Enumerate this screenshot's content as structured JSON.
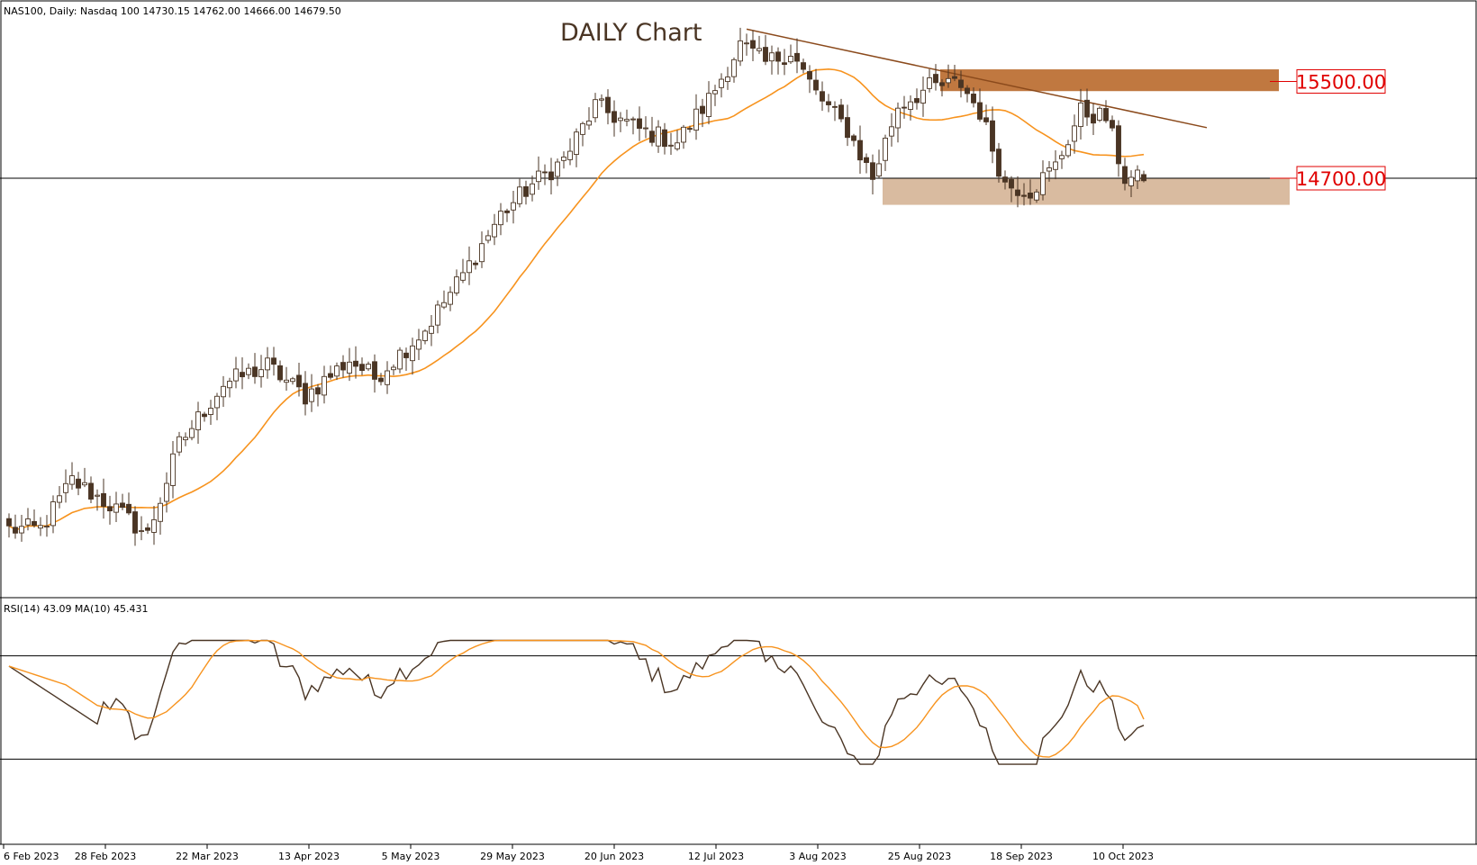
{
  "header": {
    "symbol_info": "NAS100, Daily:  Nasdaq 100  14730.15 14762.00 14666.00 14679.50"
  },
  "chart_data": [
    {
      "type": "candlestick",
      "title": "DAILY Chart",
      "symbol": "NAS100",
      "timeframe": "Daily",
      "ohlc_last": {
        "open": 14730.15,
        "high": 14762.0,
        "low": 14666.0,
        "close": 14679.5
      },
      "x_tick_labels": [
        "6 Feb 2023",
        "28 Feb 2023",
        "22 Mar 2023",
        "13 Apr 2023",
        "5 May 2023",
        "29 May 2023",
        "20 Jun 2023",
        "12 Jul 2023",
        "3 Aug 2023",
        "25 Aug 2023",
        "18 Sep 2023",
        "10 Oct 2023"
      ],
      "levels": [
        {
          "label": "15500.00",
          "value": 15500,
          "zone": [
            15420,
            15600
          ],
          "color": "#c07840"
        },
        {
          "label": "14700.00",
          "value": 14700,
          "zone": [
            14480,
            14700
          ],
          "color": "#d9bba0"
        }
      ],
      "horizontal_line": 14700,
      "trendline": [
        {
          "date": "2023-07-19",
          "price": 15932
        },
        {
          "date": "2023-10-30",
          "price": 15118
        }
      ],
      "moving_average_color": "#f7931e",
      "candle_colors": {
        "up": "#ffffff",
        "down": "#4a3524",
        "outline": "#4a3524"
      },
      "anchors": [
        {
          "i": 0,
          "p": 11800
        },
        {
          "i": 5,
          "p": 11800
        },
        {
          "i": 10,
          "p": 12200
        },
        {
          "i": 16,
          "p": 12000
        },
        {
          "i": 22,
          "p": 11750
        },
        {
          "i": 27,
          "p": 12500
        },
        {
          "i": 34,
          "p": 13000
        },
        {
          "i": 41,
          "p": 13150
        },
        {
          "i": 47,
          "p": 12900
        },
        {
          "i": 54,
          "p": 13200
        },
        {
          "i": 58,
          "p": 13050
        },
        {
          "i": 66,
          "p": 13450
        },
        {
          "i": 72,
          "p": 13900
        },
        {
          "i": 78,
          "p": 14400
        },
        {
          "i": 83,
          "p": 14650
        },
        {
          "i": 88,
          "p": 14850
        },
        {
          "i": 93,
          "p": 15300
        },
        {
          "i": 100,
          "p": 15100
        },
        {
          "i": 106,
          "p": 15000
        },
        {
          "i": 111,
          "p": 15350
        },
        {
          "i": 116,
          "p": 15800
        },
        {
          "i": 120,
          "p": 15650
        },
        {
          "i": 124,
          "p": 15750
        },
        {
          "i": 128,
          "p": 15400
        },
        {
          "i": 133,
          "p": 15100
        },
        {
          "i": 137,
          "p": 14700
        },
        {
          "i": 141,
          "p": 15300
        },
        {
          "i": 146,
          "p": 15450
        },
        {
          "i": 151,
          "p": 15480
        },
        {
          "i": 154,
          "p": 15250
        },
        {
          "i": 158,
          "p": 14650
        },
        {
          "i": 162,
          "p": 14600
        },
        {
          "i": 166,
          "p": 14800
        },
        {
          "i": 170,
          "p": 15250
        },
        {
          "i": 174,
          "p": 15200
        },
        {
          "i": 177,
          "p": 14700
        },
        {
          "i": 180,
          "p": 14680
        }
      ],
      "sub_panel": {
        "label": "RSI(14) 43.09 MA(10) 45.431",
        "indicator": "RSI",
        "period": 14,
        "value": 43.09,
        "ma_period": 10,
        "ma_value": 45.431,
        "levels": [
          70,
          30
        ],
        "ylim": [
          20,
          80
        ],
        "rsi_color": "#4a3524",
        "ma_color": "#f7931e"
      }
    }
  ]
}
